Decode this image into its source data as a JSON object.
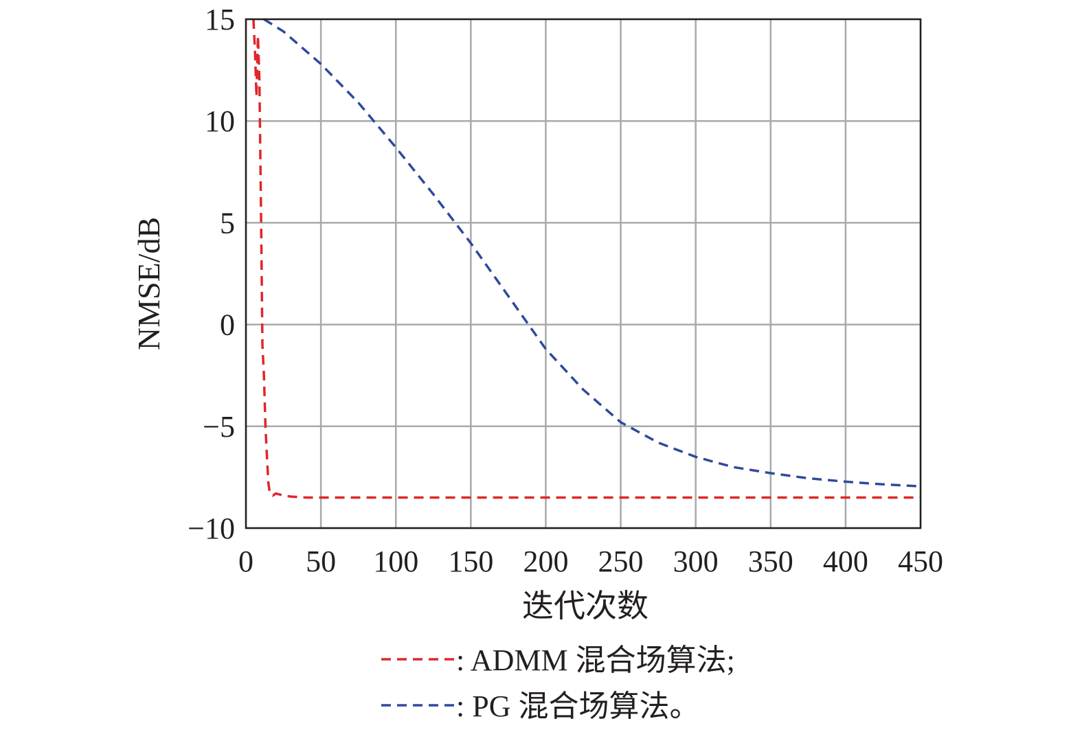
{
  "chart_data": {
    "type": "line",
    "xlabel": "迭代次数",
    "ylabel": "NMSE/dB",
    "xlim": [
      0,
      450
    ],
    "ylim": [
      -10,
      15
    ],
    "xticks": [
      0,
      50,
      100,
      150,
      200,
      250,
      300,
      350,
      400,
      450
    ],
    "xtick_labels": [
      "0",
      "50",
      "100",
      "150",
      "200",
      "250",
      "300",
      "350",
      "400",
      "450"
    ],
    "yticks": [
      15,
      10,
      5,
      0,
      -5,
      -10
    ],
    "ytick_labels": [
      "15",
      "10",
      "5",
      "0",
      "−5",
      "−10"
    ],
    "grid": true,
    "legend_position": "bottom",
    "series": [
      {
        "name": ": ADMM 混合场算法;",
        "color": "#e0262c",
        "dash": "dashed",
        "x": [
          5,
          6,
          7,
          8,
          9,
          10,
          11,
          12,
          13,
          14,
          15,
          16,
          18,
          20,
          25,
          30,
          40,
          60,
          100,
          200,
          300,
          400,
          450
        ],
        "y": [
          15,
          13.5,
          11.2,
          14.2,
          12,
          6,
          -1,
          -2.5,
          -5,
          -6.5,
          -7.8,
          -8.3,
          -8.4,
          -8.3,
          -8.4,
          -8.45,
          -8.5,
          -8.5,
          -8.5,
          -8.5,
          -8.5,
          -8.5,
          -8.5
        ]
      },
      {
        "name": ": PG 混合场算法。",
        "color": "#2e4a9c",
        "dash": "dashed",
        "x": [
          12,
          25,
          50,
          75,
          100,
          125,
          150,
          175,
          200,
          225,
          250,
          275,
          300,
          325,
          350,
          375,
          400,
          425,
          450
        ],
        "y": [
          15,
          14.4,
          12.8,
          10.9,
          8.7,
          6.4,
          4.0,
          1.4,
          -1.2,
          -3.2,
          -4.8,
          -5.8,
          -6.5,
          -7.0,
          -7.3,
          -7.55,
          -7.72,
          -7.85,
          -7.95
        ]
      }
    ]
  }
}
